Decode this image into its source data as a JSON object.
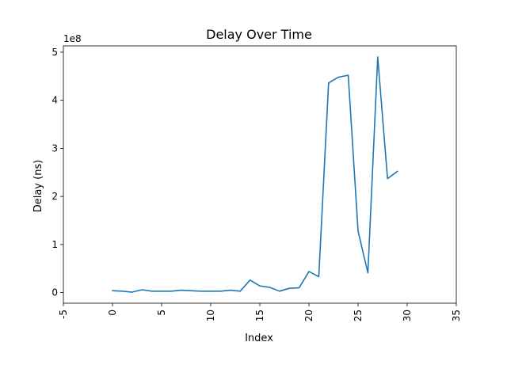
{
  "chart_data": {
    "type": "line",
    "title": "Delay Over Time",
    "xlabel": "Index",
    "ylabel": "Delay (ns)",
    "y_offset_label": "1e8",
    "xlim": [
      -5,
      35
    ],
    "ylim": [
      -0.22,
      5.13
    ],
    "xticks": [
      -5,
      0,
      5,
      10,
      15,
      20,
      25,
      30,
      35
    ],
    "yticks": [
      0,
      1,
      2,
      3,
      4,
      5
    ],
    "x_tick_rotation": 90,
    "grid": false,
    "series": [
      {
        "color": "#1f77b4",
        "x": [
          0,
          1,
          2,
          3,
          4,
          5,
          6,
          7,
          8,
          9,
          10,
          11,
          12,
          13,
          14,
          15,
          16,
          17,
          18,
          19,
          20,
          21,
          22,
          23,
          24,
          25,
          26,
          27,
          28,
          29
        ],
        "values": [
          0.04,
          0.03,
          0.01,
          0.06,
          0.03,
          0.03,
          0.03,
          0.05,
          0.04,
          0.03,
          0.03,
          0.03,
          0.05,
          0.03,
          0.26,
          0.14,
          0.11,
          0.03,
          0.09,
          0.1,
          0.44,
          0.33,
          4.36,
          4.48,
          4.52,
          1.28,
          0.41,
          4.9,
          2.37,
          2.52
        ]
      }
    ]
  }
}
